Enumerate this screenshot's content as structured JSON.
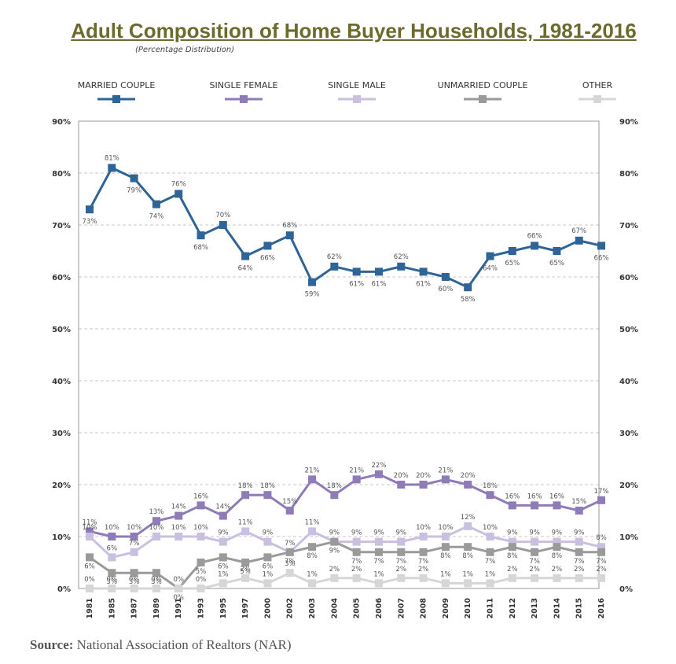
{
  "title": "Adult Composition of Home Buyer Households, 1981-2016",
  "subtitle": "(Percentage Distribution)",
  "source_label": "Source:",
  "source_text": "National Association of Realtors (NAR)",
  "chart_data": {
    "type": "line",
    "title": "Adult Composition of Home Buyer Households, 1981-2016",
    "subtitle": "(Percentage Distribution)",
    "xlabel": "",
    "ylabel": "",
    "ylim": [
      0,
      90
    ],
    "yticks": [
      0,
      10,
      20,
      30,
      40,
      50,
      60,
      70,
      80,
      90
    ],
    "ytick_format": "%",
    "grid": "horizontal-dashed",
    "legend_position": "top",
    "categories": [
      "1981",
      "1985",
      "1987",
      "1989",
      "1991",
      "1993",
      "1995",
      "1997",
      "2000",
      "2002",
      "2003",
      "2004",
      "2005",
      "2006",
      "2007",
      "2008",
      "2009",
      "2010",
      "2011",
      "2012",
      "2013",
      "2014",
      "2015",
      "2016"
    ],
    "series": [
      {
        "name": "MARRIED COUPLE",
        "color": "#2e6496",
        "label_pos": "mixed",
        "values": [
          73,
          81,
          79,
          74,
          76,
          68,
          70,
          64,
          66,
          68,
          59,
          62,
          61,
          61,
          62,
          61,
          60,
          58,
          64,
          65,
          66,
          65,
          67,
          66
        ]
      },
      {
        "name": "SINGLE FEMALE",
        "color": "#8e7bb8",
        "values": [
          11,
          10,
          10,
          13,
          14,
          16,
          14,
          18,
          18,
          15,
          21,
          18,
          21,
          22,
          20,
          20,
          21,
          20,
          18,
          16,
          16,
          16,
          15,
          17
        ]
      },
      {
        "name": "SINGLE MALE",
        "color": "#c9bfe0",
        "values": [
          10,
          6,
          7,
          10,
          10,
          10,
          9,
          11,
          9,
          7,
          11,
          9,
          9,
          9,
          9,
          10,
          10,
          12,
          10,
          9,
          9,
          9,
          9,
          8
        ]
      },
      {
        "name": "UNMARRIED COUPLE",
        "color": "#9a9a9a",
        "values": [
          6,
          3,
          3,
          3,
          0,
          5,
          6,
          5,
          6,
          7,
          8,
          9,
          7,
          7,
          7,
          7,
          8,
          8,
          7,
          8,
          7,
          8,
          7,
          7
        ]
      },
      {
        "name": "OTHER",
        "color": "#d6d6d6",
        "values": [
          0,
          0,
          0,
          0,
          0,
          0,
          1,
          2,
          1,
          3,
          1,
          2,
          2,
          1,
          2,
          2,
          1,
          1,
          1,
          2,
          2,
          2,
          2,
          2
        ]
      }
    ]
  }
}
